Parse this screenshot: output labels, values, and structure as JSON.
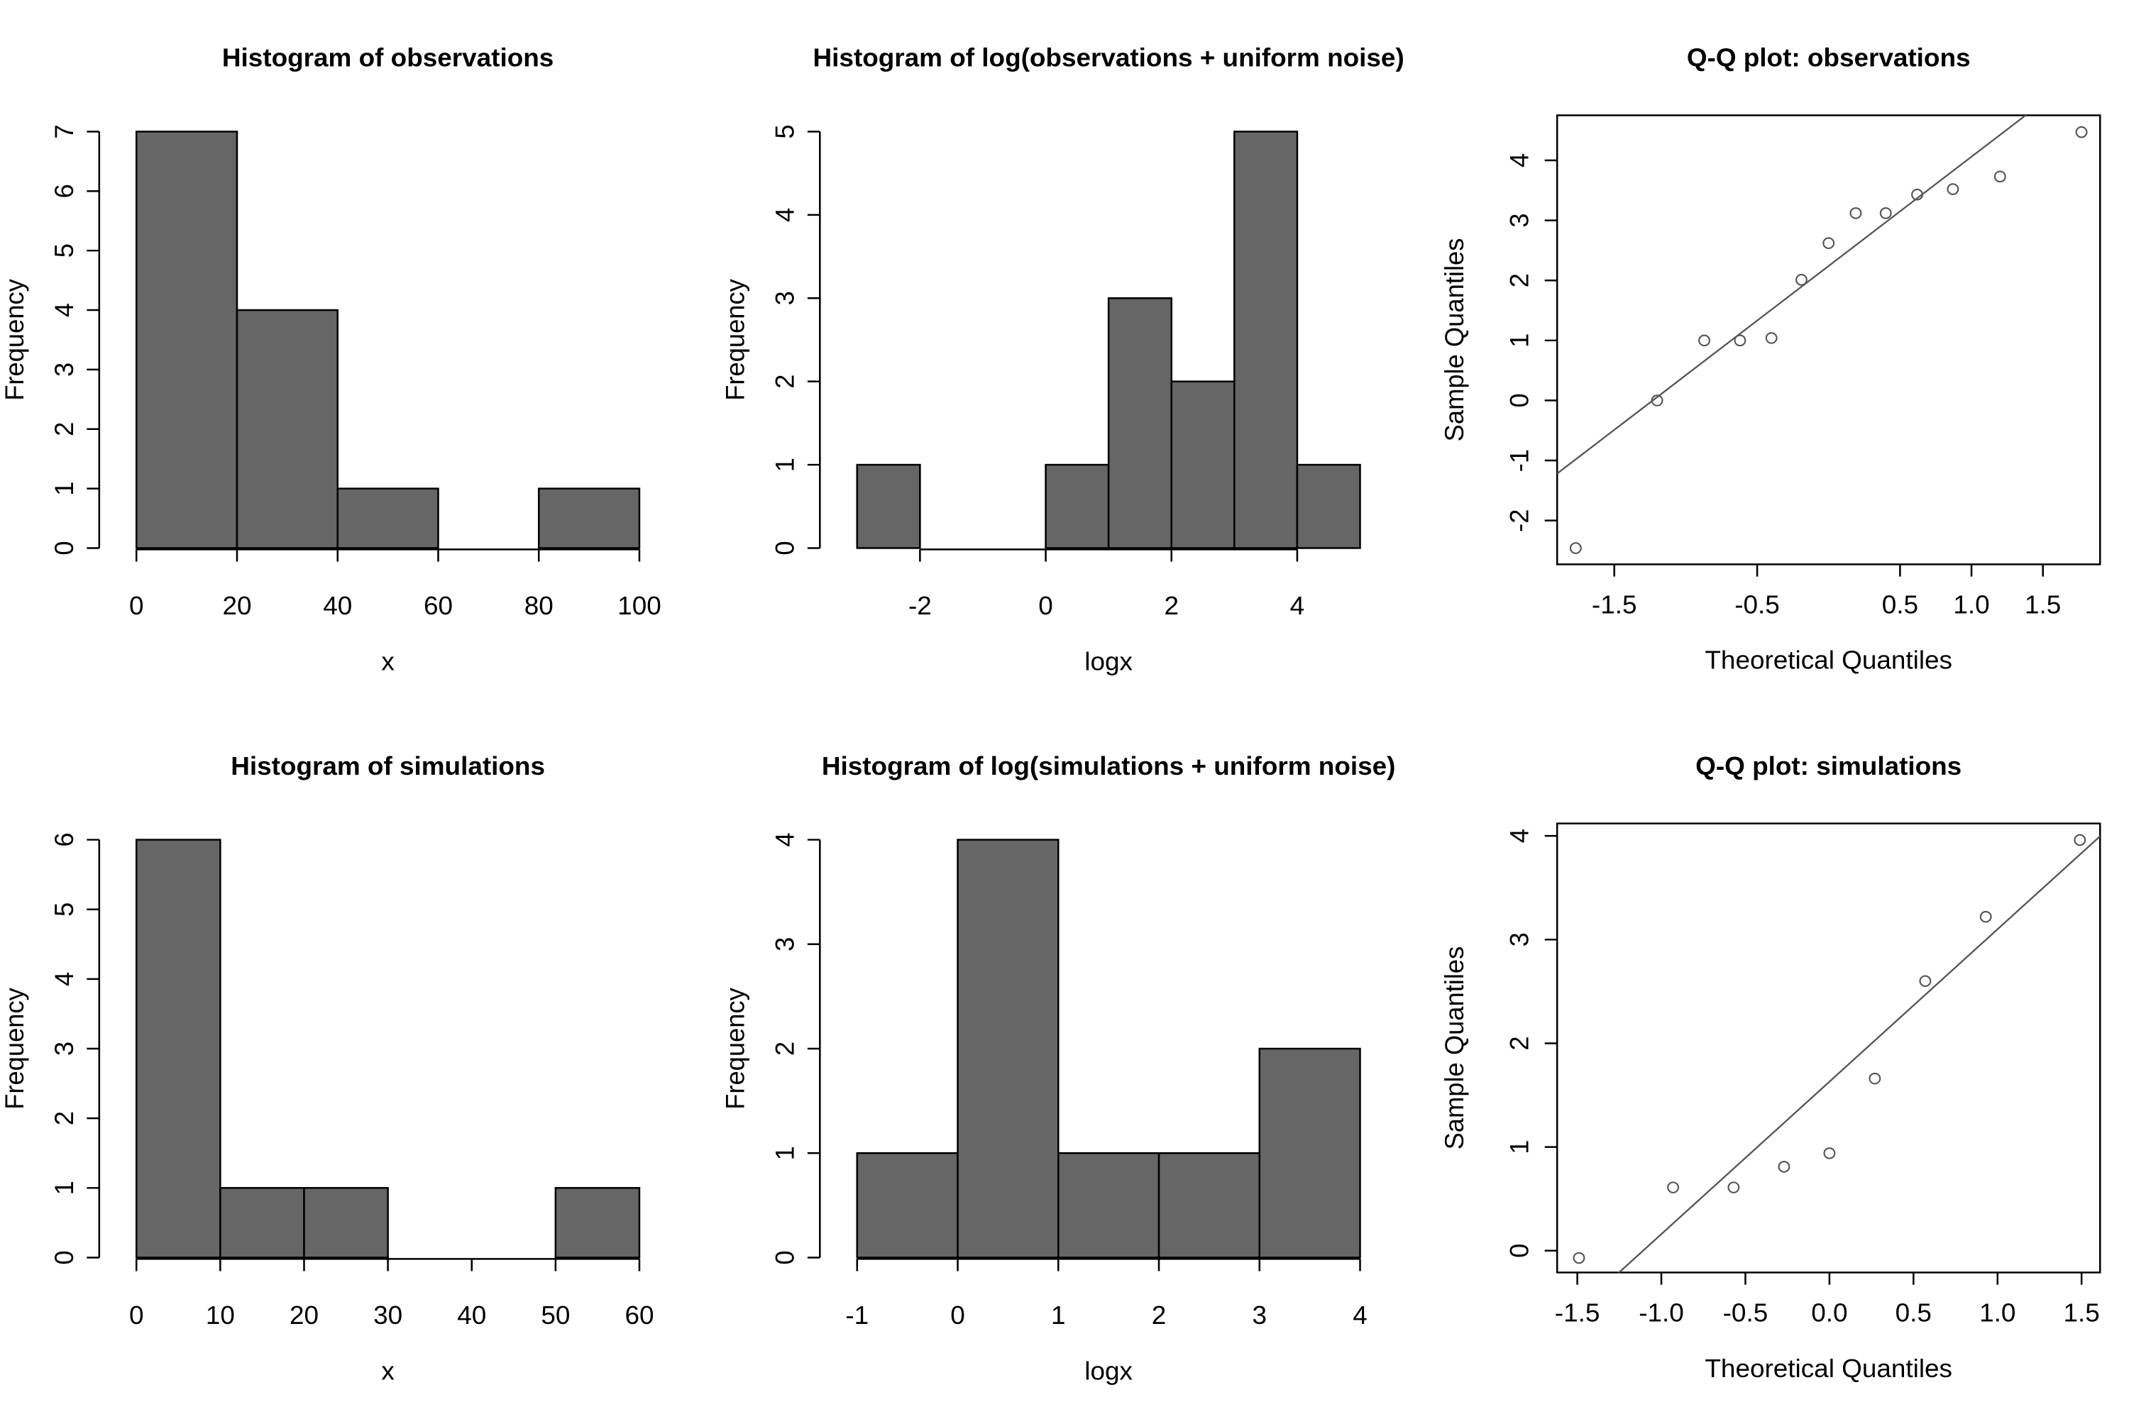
{
  "chart_data": [
    {
      "type": "histogram",
      "title": "Histogram of observations",
      "xlabel": "x",
      "ylabel": "Frequency",
      "bins": [
        0,
        20,
        40,
        60,
        80,
        100
      ],
      "counts": [
        7,
        4,
        1,
        0,
        1
      ],
      "color": "#666666",
      "xlim": [
        0,
        100
      ],
      "ylim": [
        0,
        7
      ],
      "xticks": [
        0,
        20,
        40,
        60,
        80,
        100
      ],
      "yticks": [
        0,
        1,
        2,
        3,
        4,
        5,
        6,
        7
      ]
    },
    {
      "type": "histogram",
      "title": "Histogram of log(observations + uniform noise)",
      "xlabel": "logx",
      "ylabel": "Frequency",
      "bins": [
        -3,
        -2,
        -1,
        0,
        1,
        2,
        3,
        4,
        5
      ],
      "counts": [
        1,
        0,
        0,
        1,
        3,
        2,
        5,
        1
      ],
      "color": "#666666",
      "xlim": [
        -3,
        5
      ],
      "ylim": [
        0,
        5
      ],
      "xticks": [
        -2,
        0,
        2,
        4
      ],
      "yticks": [
        0,
        1,
        2,
        3,
        4,
        5
      ]
    },
    {
      "type": "qq",
      "title": "Q-Q plot: observations",
      "xlabel": "Theoretical Quantiles",
      "ylabel": "Sample Quantiles",
      "x": [
        -1.77,
        -1.2,
        -0.87,
        -0.62,
        -0.4,
        -0.19,
        0,
        0.19,
        0.4,
        0.62,
        0.87,
        1.2,
        1.77
      ],
      "y": [
        -2.46,
        0.0,
        1.0,
        1.0,
        1.04,
        2.01,
        2.62,
        3.12,
        3.12,
        3.43,
        3.52,
        3.73,
        4.47
      ],
      "line": {
        "intercept": 2.24,
        "slope": 1.82
      },
      "color": "#555555",
      "xlim": [
        -1.9,
        1.9
      ],
      "ylim": [
        -2.73,
        4.75
      ],
      "xticks": [
        -1.5,
        -0.5,
        0.5,
        {
          "value": 1,
          "label": "1.0"
        },
        1.5
      ],
      "yticks": [
        -2,
        -1,
        0,
        1,
        2,
        3,
        4
      ]
    },
    {
      "type": "histogram",
      "title": "Histogram of simulations",
      "xlabel": "x",
      "ylabel": "Frequency",
      "bins": [
        0,
        10,
        20,
        30,
        40,
        50,
        60
      ],
      "counts": [
        6,
        1,
        1,
        0,
        0,
        1
      ],
      "color": "#666666",
      "xlim": [
        0,
        60
      ],
      "ylim": [
        0,
        6
      ],
      "xticks": [
        0,
        10,
        20,
        30,
        40,
        50,
        60
      ],
      "yticks": [
        0,
        1,
        2,
        3,
        4,
        5,
        6
      ]
    },
    {
      "type": "histogram",
      "title": "Histogram of log(simulations + uniform noise)",
      "xlabel": "logx",
      "ylabel": "Frequency",
      "bins": [
        -1,
        0,
        1,
        2,
        3,
        4
      ],
      "counts": [
        1,
        4,
        1,
        1,
        2
      ],
      "color": "#666666",
      "xlim": [
        -1,
        4
      ],
      "ylim": [
        0,
        4
      ],
      "xticks": [
        -1,
        0,
        1,
        2,
        3,
        4
      ],
      "yticks": [
        0,
        1,
        2,
        3,
        4
      ]
    },
    {
      "type": "qq",
      "title": "Q-Q plot: simulations",
      "xlabel": "Theoretical Quantiles",
      "ylabel": "Sample Quantiles",
      "x": [
        -1.49,
        -0.93,
        -0.57,
        -0.27,
        0,
        0.27,
        0.57,
        0.93,
        1.49
      ],
      "y": [
        -0.07,
        0.61,
        0.61,
        0.81,
        0.94,
        1.66,
        2.6,
        3.22,
        3.96
      ],
      "line": {
        "intercept": 1.63,
        "slope": 1.47
      },
      "color": "#555555",
      "xlim": [
        -1.62,
        1.61
      ],
      "ylim": [
        -0.21,
        4.12
      ],
      "xticks": [
        -1.5,
        {
          "value": -1,
          "label": "-1.0"
        },
        -0.5,
        {
          "value": 0,
          "label": "0.0"
        },
        0.5,
        {
          "value": 1,
          "label": "1.0"
        },
        1.5
      ],
      "yticks": [
        0,
        1,
        2,
        3,
        4
      ]
    }
  ]
}
